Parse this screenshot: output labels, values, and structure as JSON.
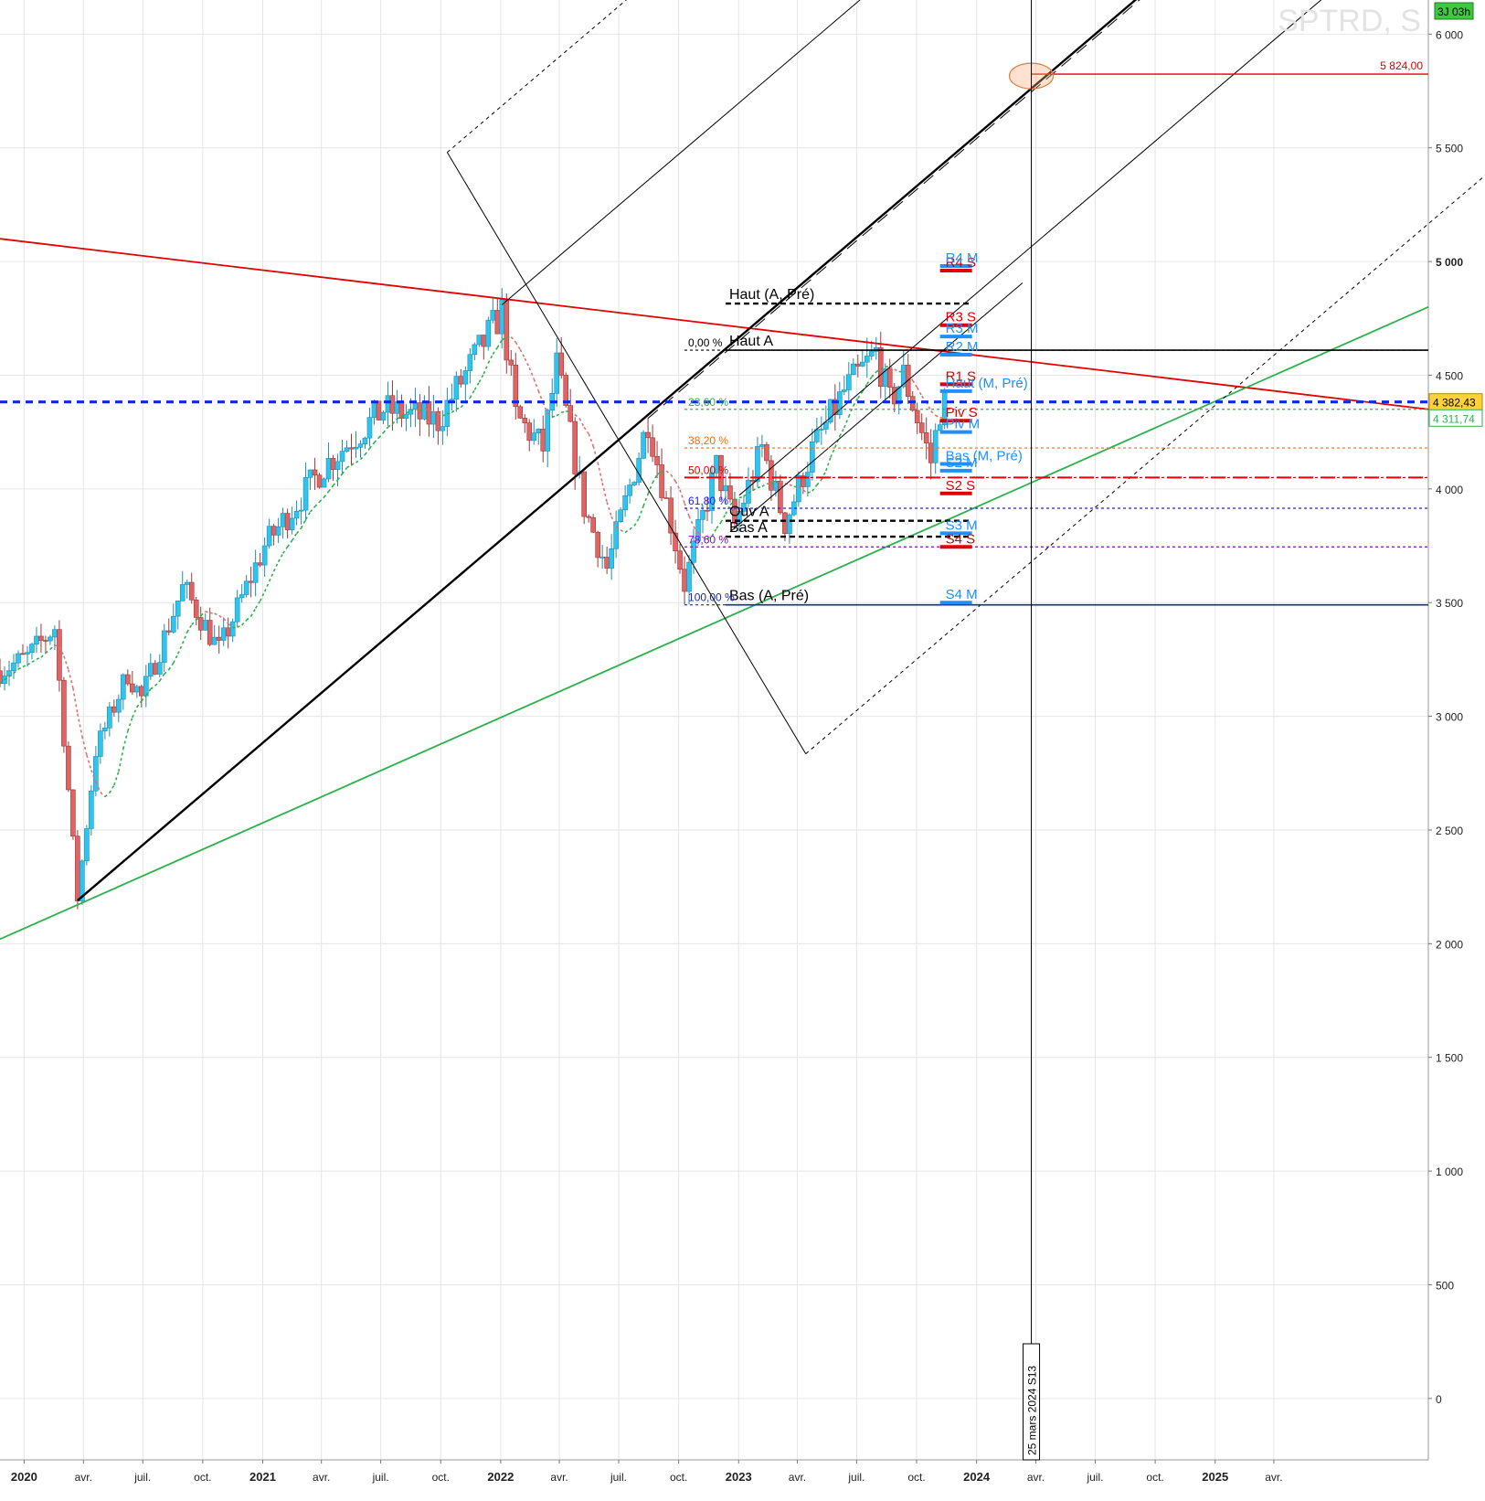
{
  "chart_data": {
    "type": "candlestick",
    "title": "SPTRD, S",
    "timer_badge": "3J 03h",
    "y_axis": {
      "ylim": [
        -270,
        6150
      ],
      "ticks": [
        {
          "v": 6000,
          "label": "6 000",
          "bold": false
        },
        {
          "v": 5500,
          "label": "5 500",
          "bold": false
        },
        {
          "v": 5000,
          "label": "5 000",
          "bold": true
        },
        {
          "v": 4500,
          "label": "4 500",
          "bold": false
        },
        {
          "v": 4000,
          "label": "4 000",
          "bold": false
        },
        {
          "v": 3500,
          "label": "3 500",
          "bold": false
        },
        {
          "v": 3000,
          "label": "3 000",
          "bold": false
        },
        {
          "v": 2500,
          "label": "2 500",
          "bold": false
        },
        {
          "v": 2000,
          "label": "2 000",
          "bold": false
        },
        {
          "v": 1500,
          "label": "1 500",
          "bold": false
        },
        {
          "v": 1000,
          "label": "1 000",
          "bold": false
        },
        {
          "v": 500,
          "label": "500",
          "bold": false
        },
        {
          "v": 0,
          "label": "0",
          "bold": false
        }
      ]
    },
    "x_axis": {
      "xlim": [
        "2019-11-25",
        "2025-11-24"
      ],
      "ticks": [
        {
          "date": "2020-01-01",
          "label": "2020",
          "bold": true
        },
        {
          "date": "2020-04-01",
          "label": "avr.",
          "bold": false
        },
        {
          "date": "2020-07-01",
          "label": "juil.",
          "bold": false
        },
        {
          "date": "2020-10-01",
          "label": "oct.",
          "bold": false
        },
        {
          "date": "2021-01-01",
          "label": "2021",
          "bold": true
        },
        {
          "date": "2021-04-01",
          "label": "avr.",
          "bold": false
        },
        {
          "date": "2021-07-01",
          "label": "juil.",
          "bold": false
        },
        {
          "date": "2021-10-01",
          "label": "oct.",
          "bold": false
        },
        {
          "date": "2022-01-01",
          "label": "2022",
          "bold": true
        },
        {
          "date": "2022-04-01",
          "label": "avr.",
          "bold": false
        },
        {
          "date": "2022-07-01",
          "label": "juil.",
          "bold": false
        },
        {
          "date": "2022-10-01",
          "label": "oct.",
          "bold": false
        },
        {
          "date": "2023-01-01",
          "label": "2023",
          "bold": true
        },
        {
          "date": "2023-04-01",
          "label": "avr.",
          "bold": false
        },
        {
          "date": "2023-07-01",
          "label": "juil.",
          "bold": false
        },
        {
          "date": "2023-10-01",
          "label": "oct.",
          "bold": false
        },
        {
          "date": "2024-01-01",
          "label": "2024",
          "bold": true
        },
        {
          "date": "2024-04-01",
          "label": "avr.",
          "bold": false
        },
        {
          "date": "2024-07-01",
          "label": "juil.",
          "bold": false
        },
        {
          "date": "2024-10-01",
          "label": "oct.",
          "bold": false
        },
        {
          "date": "2025-01-01",
          "label": "2025",
          "bold": true
        },
        {
          "date": "2025-04-01",
          "label": "avr.",
          "bold": false
        }
      ]
    },
    "price_path": [
      {
        "date": "2019-11-25",
        "value": 3200
      },
      {
        "date": "2020-01-06",
        "value": 3260
      },
      {
        "date": "2020-02-17",
        "value": 3390
      },
      {
        "date": "2020-03-23",
        "value": 2200
      },
      {
        "date": "2020-04-20",
        "value": 2850
      },
      {
        "date": "2020-06-08",
        "value": 3190
      },
      {
        "date": "2020-06-29",
        "value": 3080
      },
      {
        "date": "2020-09-01",
        "value": 3570
      },
      {
        "date": "2020-10-26",
        "value": 3290
      },
      {
        "date": "2021-01-04",
        "value": 3750
      },
      {
        "date": "2021-04-05",
        "value": 4100
      },
      {
        "date": "2021-07-05",
        "value": 4350
      },
      {
        "date": "2021-09-27",
        "value": 4300
      },
      {
        "date": "2022-01-03",
        "value": 4780
      },
      {
        "date": "2022-01-24",
        "value": 4320
      },
      {
        "date": "2022-03-07",
        "value": 4180
      },
      {
        "date": "2022-03-28",
        "value": 4540
      },
      {
        "date": "2022-05-09",
        "value": 3920
      },
      {
        "date": "2022-06-13",
        "value": 3650
      },
      {
        "date": "2022-08-15",
        "value": 4300
      },
      {
        "date": "2022-10-10",
        "value": 3580
      },
      {
        "date": "2022-11-28",
        "value": 4100
      },
      {
        "date": "2022-12-26",
        "value": 3840
      },
      {
        "date": "2023-02-06",
        "value": 4180
      },
      {
        "date": "2023-03-13",
        "value": 3850
      },
      {
        "date": "2023-04-24",
        "value": 4170
      },
      {
        "date": "2023-06-12",
        "value": 4430
      },
      {
        "date": "2023-07-31",
        "value": 4600
      },
      {
        "date": "2023-08-21",
        "value": 4380
      },
      {
        "date": "2023-09-11",
        "value": 4500
      },
      {
        "date": "2023-10-23",
        "value": 4120
      },
      {
        "date": "2023-11-06",
        "value": 4350
      },
      {
        "date": "2023-11-13",
        "value": 4382.43
      }
    ],
    "price_labels": [
      {
        "value": 4382.43,
        "label": "4 382,43",
        "style": "current"
      },
      {
        "value": 4311.74,
        "label": "4 311,74",
        "style": "ma"
      },
      {
        "value": 5824,
        "label": "5 824,00",
        "style": "target"
      }
    ],
    "target_level": {
      "value": 5824,
      "from": "2024-03-25",
      "label": "5 824,00"
    },
    "vertical_marker": {
      "date": "2024-03-25",
      "label": "25 mars 2024 S13"
    },
    "horizontal_levels": [
      {
        "name": "haut-a-pre",
        "label": "Haut (A, Pré)",
        "value": 4815,
        "from": "2022-12-12",
        "to": "2023-12-25",
        "style": "dashed",
        "color": "#000000"
      },
      {
        "name": "haut-a",
        "label": "Haut A",
        "value": 4610,
        "from": "2022-12-12",
        "to": "2025-11-24",
        "style": "solid",
        "color": "#000000"
      },
      {
        "name": "pivot-line",
        "label": "",
        "value": 4382.43,
        "from": "2019-11-25",
        "to": "2025-11-24",
        "style": "bold-dashed",
        "color": "#0a2be0"
      },
      {
        "name": "ouv-a",
        "label": "Ouv A",
        "value": 3860,
        "from": "2022-12-12",
        "to": "2023-12-25",
        "style": "dashed",
        "color": "#000000"
      },
      {
        "name": "bas-a",
        "label": "Bas A",
        "value": 3790,
        "from": "2022-12-12",
        "to": "2023-12-25",
        "style": "dashed",
        "color": "#000000"
      },
      {
        "name": "bas-a-pre",
        "label": "Bas (A, Pré)",
        "value": 3490,
        "from": "2022-12-12",
        "to": "2025-11-24",
        "style": "solid",
        "color": "#1a2a9e"
      }
    ],
    "fibonacci": [
      {
        "label": "0,00 %",
        "value": 4610,
        "color": "#000000"
      },
      {
        "label": "23,60 %",
        "value": 4350,
        "color": "#2bb24c"
      },
      {
        "label": "38,20 %",
        "value": 4180,
        "color": "#ff6a00"
      },
      {
        "label": "50,00 %",
        "value": 4050,
        "color": "#e00000"
      },
      {
        "label": "61,80 %",
        "value": 3915,
        "color": "#1a1aff"
      },
      {
        "label": "78,60 %",
        "value": 3745,
        "color": "#8a00d4"
      },
      {
        "label": "100,00 %",
        "value": 3490,
        "color": "#1a2a9e"
      }
    ],
    "pivots": [
      {
        "label": "R4 S",
        "value": 4960,
        "color": "#e00000"
      },
      {
        "label": "R4 M",
        "value": 4980,
        "color": "#1e90ff"
      },
      {
        "label": "R3 S",
        "value": 4720,
        "color": "#e00000"
      },
      {
        "label": "R3 M",
        "value": 4670,
        "color": "#1e90ff"
      },
      {
        "label": "R2 M",
        "value": 4590,
        "color": "#1e90ff"
      },
      {
        "label": "R1 S",
        "value": 4460,
        "color": "#e00000"
      },
      {
        "label": "Haut (M, Pré)",
        "value": 4430,
        "color": "#1e90ff"
      },
      {
        "label": "Piv S",
        "value": 4300,
        "color": "#e00000"
      },
      {
        "label": "Piv M",
        "value": 4250,
        "color": "#1e90ff"
      },
      {
        "label": "Bas (M, Pré)",
        "value": 4110,
        "color": "#1e90ff"
      },
      {
        "label": "S2 M",
        "value": 4080,
        "color": "#1e90ff"
      },
      {
        "label": "S2 S",
        "value": 3980,
        "color": "#e00000"
      },
      {
        "label": "S3 M",
        "value": 3805,
        "color": "#1e90ff"
      },
      {
        "label": "S4 S",
        "value": 3745,
        "color": "#e00000"
      },
      {
        "label": "S4 M",
        "value": 3500,
        "color": "#1e90ff"
      }
    ],
    "trendlines": [
      {
        "name": "red-resistance",
        "color": "#e00000",
        "style": "solid",
        "p1": {
          "date": "2019-11-25",
          "value": 5100
        },
        "p2": {
          "date": "2025-11-24",
          "value": 4350
        }
      },
      {
        "name": "green-support",
        "color": "#2bb24c",
        "style": "solid",
        "p1": {
          "date": "2019-11-25",
          "value": 2020
        },
        "p2": {
          "date": "2025-11-24",
          "value": 4800
        }
      },
      {
        "name": "black-uptrend",
        "color": "#000000",
        "style": "bold",
        "p1": {
          "date": "2020-03-23",
          "value": 2190
        },
        "p2": {
          "date": "2024-11-01",
          "value": 6300
        }
      }
    ],
    "pitchfork": {
      "color": "#000000",
      "anchor_top": {
        "date": "2022-01-03",
        "value": 4810
      },
      "anchor_bottom": {
        "date": "2022-10-10",
        "value": 3490
      },
      "anchor_far": {
        "date": "2023-04-14",
        "value": 2835
      },
      "offset_top": {
        "date": "2021-10-11",
        "value": 5480
      }
    },
    "moving_average": {
      "color_up": "#2bb24c",
      "color_down": "#e07070",
      "last_value": 4311.74
    }
  }
}
